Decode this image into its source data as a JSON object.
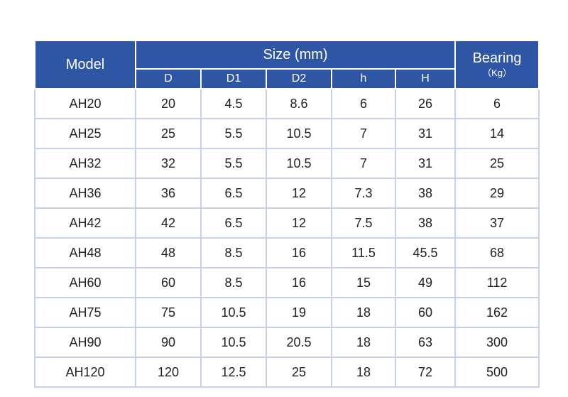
{
  "header": {
    "model": "Model",
    "size": "Size (mm)",
    "bearing": "Bearing",
    "bearing_unit": "（Kg）",
    "columns": [
      "D",
      "D1",
      "D2",
      "h",
      "H"
    ]
  },
  "rows": [
    [
      "AH20",
      "20",
      "4.5",
      "8.6",
      "6",
      "26",
      "6"
    ],
    [
      "AH25",
      "25",
      "5.5",
      "10.5",
      "7",
      "31",
      "14"
    ],
    [
      "AH32",
      "32",
      "5.5",
      "10.5",
      "7",
      "31",
      "25"
    ],
    [
      "AH36",
      "36",
      "6.5",
      "12",
      "7.3",
      "38",
      "29"
    ],
    [
      "AH42",
      "42",
      "6.5",
      "12",
      "7.5",
      "38",
      "37"
    ],
    [
      "AH48",
      "48",
      "8.5",
      "16",
      "11.5",
      "45.5",
      "68"
    ],
    [
      "AH60",
      "60",
      "8.5",
      "16",
      "15",
      "49",
      "112"
    ],
    [
      "AH75",
      "75",
      "10.5",
      "19",
      "18",
      "60",
      "162"
    ],
    [
      "AH90",
      "90",
      "10.5",
      "20.5",
      "18",
      "63",
      "300"
    ],
    [
      "AH120",
      "120",
      "12.5",
      "25",
      "18",
      "72",
      "500"
    ]
  ]
}
